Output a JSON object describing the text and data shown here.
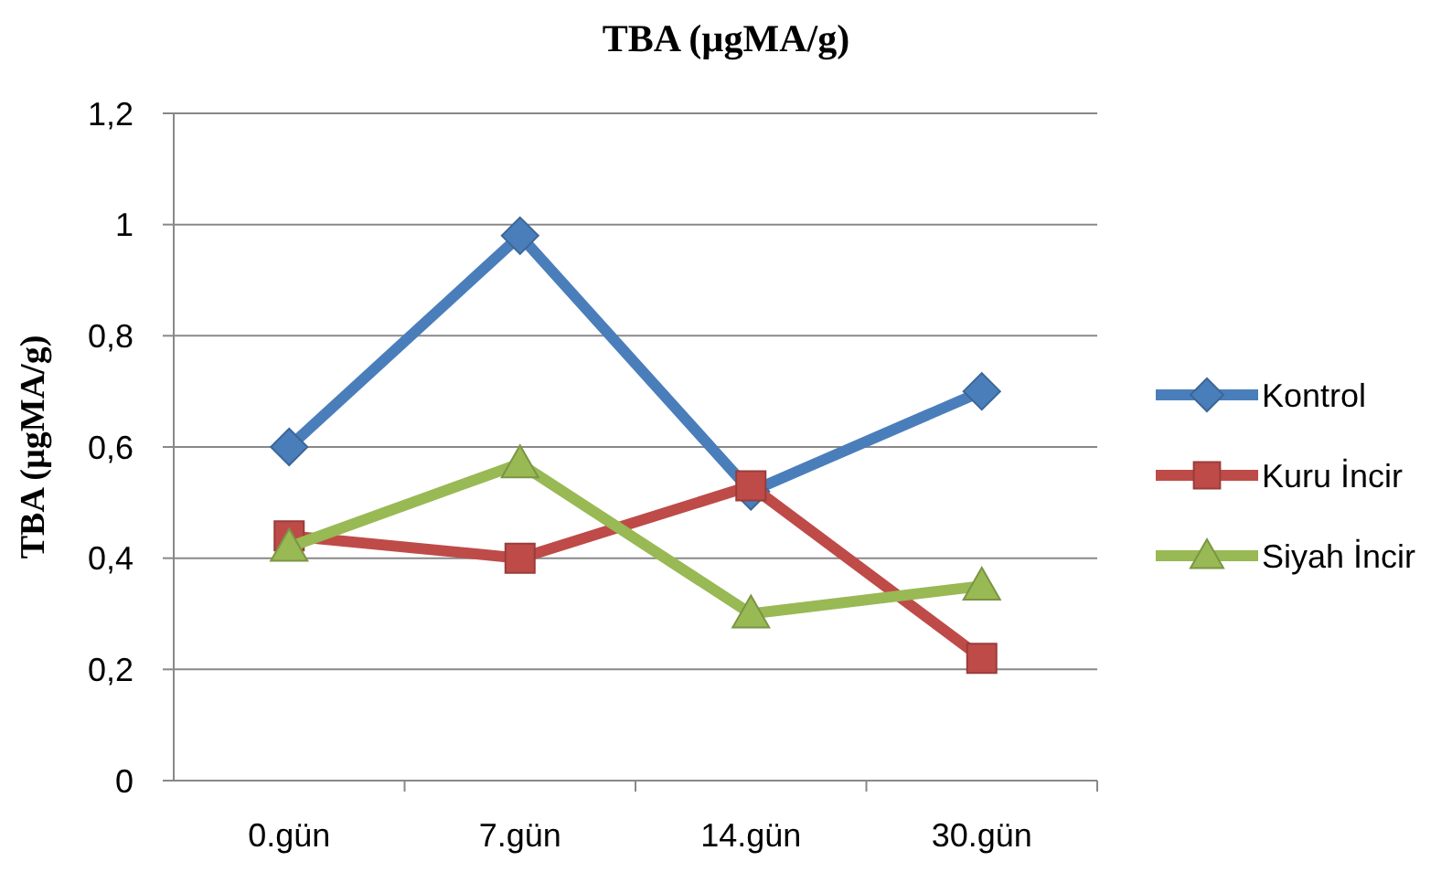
{
  "chart_data": {
    "type": "line",
    "title": "TBA (µgMA/g)",
    "ylabel": "TBA (µgMA/g)",
    "categories": [
      "0.gün",
      "7.gün",
      "14.gün",
      "30.gün"
    ],
    "series": [
      {
        "name": "Kontrol",
        "color": "#4a7ebb",
        "marker": "diamond",
        "values": [
          0.6,
          0.98,
          0.52,
          0.7
        ]
      },
      {
        "name": "Kuru İncir",
        "color": "#be4b48",
        "marker": "square",
        "values": [
          0.44,
          0.4,
          0.53,
          0.22
        ]
      },
      {
        "name": "Siyah İncir",
        "color": "#98b954",
        "marker": "triangle",
        "values": [
          0.42,
          0.57,
          0.3,
          0.35
        ]
      }
    ],
    "ylim": [
      0,
      1.2
    ],
    "yticks": [
      0,
      {
        "value": 0.2,
        "label": "0,2"
      },
      {
        "value": 0.4,
        "label": "0,4"
      },
      {
        "value": 0.6,
        "label": "0,6"
      },
      {
        "value": 0.8,
        "label": "0,8"
      },
      1,
      {
        "value": 1.2,
        "label": "1,2"
      }
    ],
    "grid": "y",
    "legend": "right",
    "line_style": "solid"
  }
}
